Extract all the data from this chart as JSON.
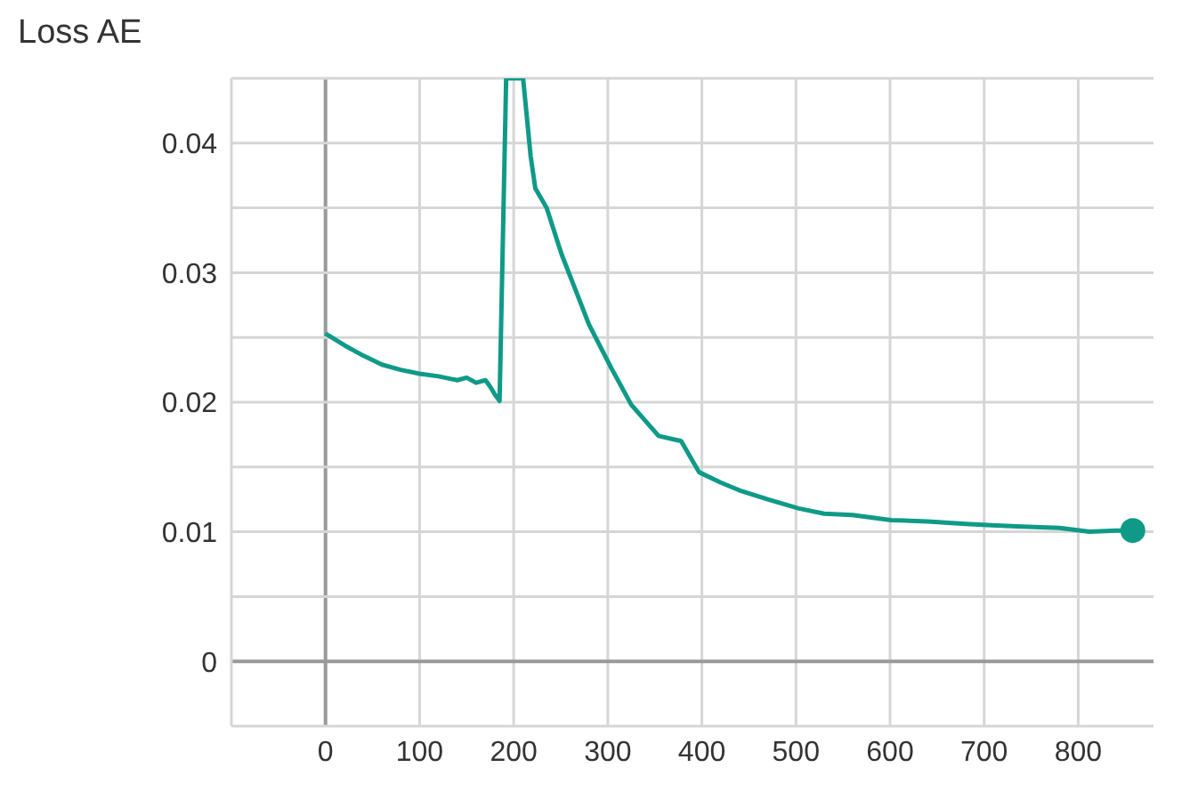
{
  "chart_data": {
    "type": "line",
    "title": "Loss AE",
    "xlim": [
      -100,
      880
    ],
    "ylim": [
      -0.005,
      0.045
    ],
    "xticks": [
      0,
      100,
      200,
      300,
      400,
      500,
      600,
      700,
      800
    ],
    "yticks": [
      0,
      {
        "value": 0.005,
        "label": null
      },
      0.01,
      {
        "value": 0.015,
        "label": null
      },
      0.02,
      {
        "value": 0.025,
        "label": null
      },
      0.03,
      {
        "value": 0.035,
        "label": null
      },
      0.04,
      {
        "value": 0.045,
        "label": null
      }
    ],
    "grid": true,
    "legend": false,
    "marker": "none",
    "line_style": "solid",
    "series": [
      {
        "color": "#0f9a88",
        "x": [
          0,
          20,
          40,
          60,
          80,
          100,
          120,
          140,
          150,
          160,
          170,
          175,
          180,
          185,
          192,
          210,
          218,
          223,
          235,
          251,
          265,
          280,
          304,
          325,
          354,
          378,
          397,
          420,
          440,
          470,
          503,
          530,
          560,
          601,
          640,
          680,
          708,
          740,
          780,
          812,
          840,
          858
        ],
        "values": [
          0.0253,
          0.0244,
          0.0236,
          0.0229,
          0.0225,
          0.0222,
          0.022,
          0.0217,
          0.0219,
          0.0215,
          0.0217,
          0.0212,
          0.0206,
          0.0201,
          0.045,
          0.045,
          0.039,
          0.0365,
          0.035,
          0.0314,
          0.0288,
          0.026,
          0.0226,
          0.0198,
          0.0174,
          0.017,
          0.0146,
          0.0138,
          0.0132,
          0.0125,
          0.0118,
          0.0114,
          0.0113,
          0.0109,
          0.0108,
          0.0106,
          0.0105,
          0.0104,
          0.0103,
          0.01,
          0.0101,
          0.0101
        ]
      },
      {
        "type": "scatter",
        "color": "#0f9a88",
        "x": [
          858
        ],
        "values": [
          0.0101
        ],
        "marker": "circle"
      }
    ]
  }
}
